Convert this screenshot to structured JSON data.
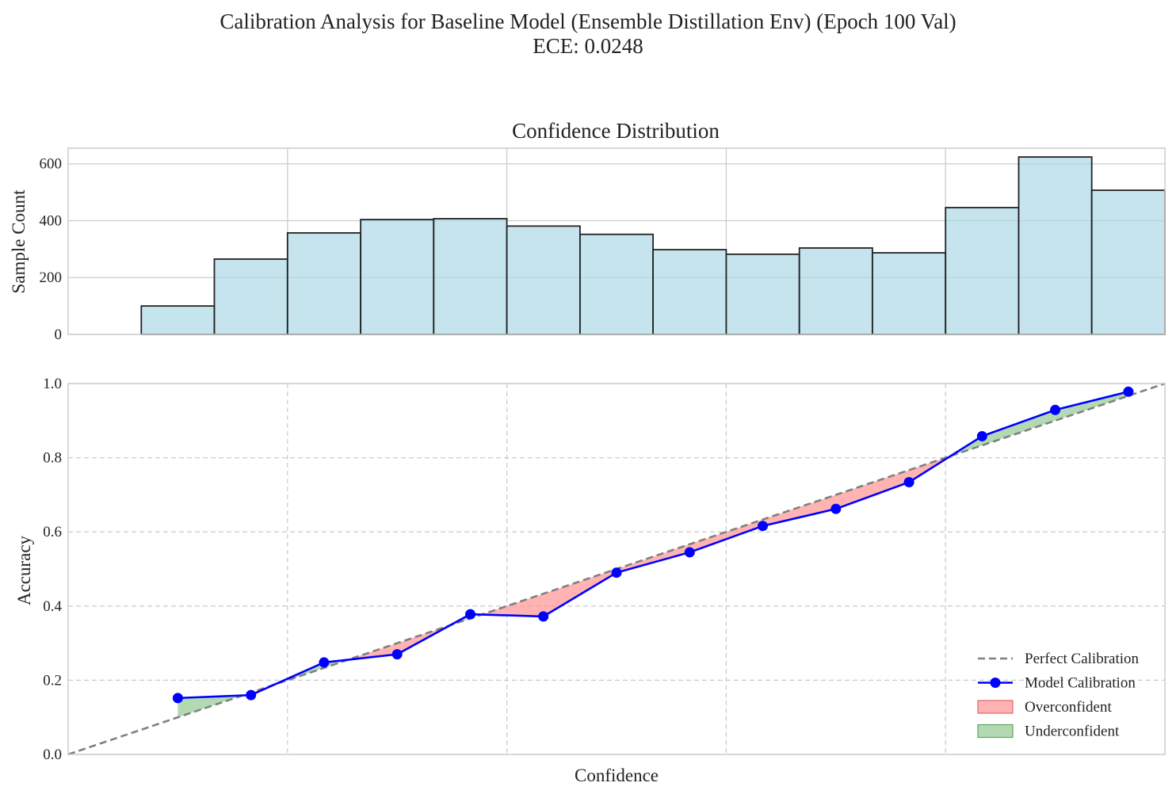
{
  "figure": {
    "title_line1": "Calibration Analysis for Baseline Model (Ensemble Distillation Env) (Epoch 100 Val)",
    "title_line2": "ECE: 0.0248"
  },
  "colors": {
    "bar_fill": "#add8e6",
    "bar_edge": "#222222",
    "model_line": "#0000ff",
    "perfect_line": "#808080",
    "overconfident": "#ff9999",
    "underconfident": "#99cc99",
    "grid": "#cccccc",
    "frame": "#cccccc"
  },
  "chart_data": [
    {
      "type": "bar",
      "title": "Confidence Distribution",
      "xlabel": "",
      "ylabel": "Sample Count",
      "xlim": [
        0.0,
        1.0
      ],
      "ylim": [
        0,
        655
      ],
      "yticks": [
        0,
        200,
        400,
        600
      ],
      "bin_edges": [
        0.0,
        0.0667,
        0.1333,
        0.2,
        0.2667,
        0.3333,
        0.4,
        0.4667,
        0.5333,
        0.6,
        0.6667,
        0.7333,
        0.8,
        0.8667,
        0.9333,
        1.0
      ],
      "values": [
        0,
        100,
        265,
        357,
        404,
        407,
        381,
        352,
        298,
        282,
        304,
        287,
        446,
        624,
        507
      ],
      "grid": true
    },
    {
      "type": "line",
      "title": "",
      "xlabel": "Confidence",
      "ylabel": "Accuracy",
      "xlim": [
        0.0,
        1.0
      ],
      "ylim": [
        0.0,
        1.0
      ],
      "yticks": [
        0.0,
        0.2,
        0.4,
        0.6,
        0.8,
        1.0
      ],
      "ytick_labels": [
        "0.0",
        "0.2",
        "0.4",
        "0.6",
        "0.8",
        "1.0"
      ],
      "grid": true,
      "legend_position": "bottom-right",
      "series": [
        {
          "name": "Perfect Calibration",
          "style": "dashed",
          "x": [
            0.0,
            1.0
          ],
          "y": [
            0.0,
            1.0
          ]
        },
        {
          "name": "Model Calibration",
          "style": "solid-marker",
          "x": [
            0.1,
            0.1667,
            0.2333,
            0.3,
            0.3667,
            0.4333,
            0.5,
            0.5667,
            0.6333,
            0.7,
            0.7667,
            0.8333,
            0.9,
            0.9667
          ],
          "y": [
            0.152,
            0.16,
            0.248,
            0.27,
            0.378,
            0.372,
            0.49,
            0.545,
            0.616,
            0.662,
            0.734,
            0.858,
            0.929,
            0.978
          ]
        }
      ],
      "legend": [
        {
          "label": "Perfect Calibration",
          "kind": "dashed-line"
        },
        {
          "label": "Model Calibration",
          "kind": "line-marker"
        },
        {
          "label": "Overconfident",
          "kind": "patch-over"
        },
        {
          "label": "Underconfident",
          "kind": "patch-under"
        }
      ]
    }
  ]
}
